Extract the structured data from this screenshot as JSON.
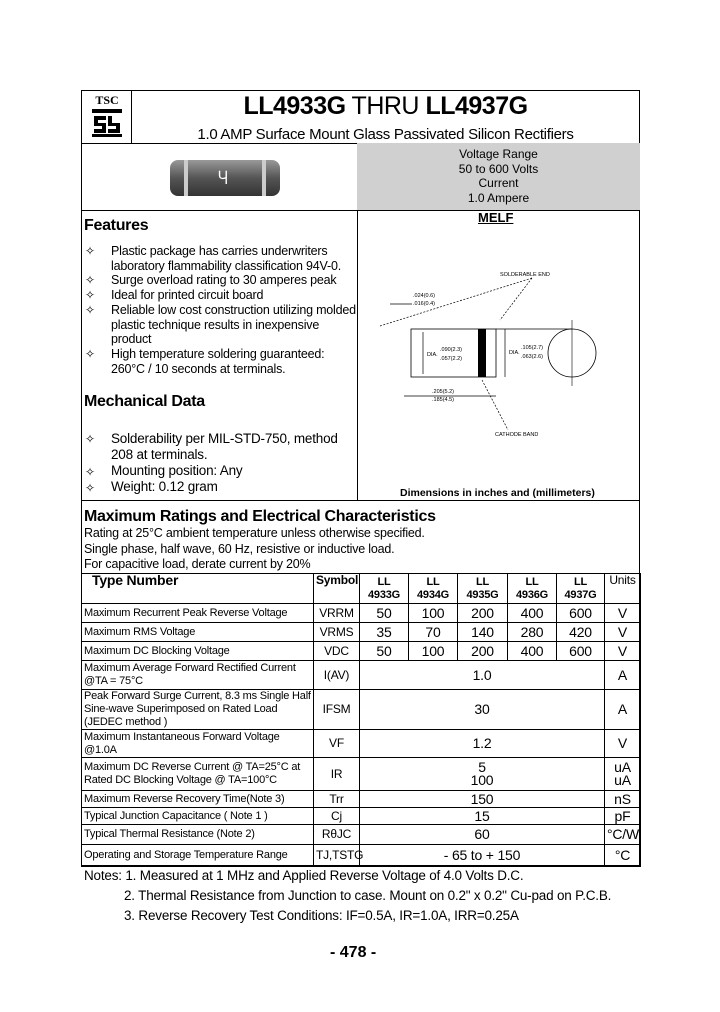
{
  "header": {
    "logo_text": "TSC",
    "part_from": "LL4933G",
    "thru": "THRU",
    "part_to": "LL4937G",
    "subtitle": "1.0 AMP Surface Mount Glass Passivated Silicon Rectifiers"
  },
  "summary": {
    "line1": "Voltage Range",
    "line2": "50 to 600 Volts",
    "line3": "Current",
    "line4": "1.0 Ampere"
  },
  "package": {
    "name": "MELF",
    "solderable_end": "SOLDERABLE END",
    "cathode_band": "CATHODE BAND",
    "dim1a": ".024(0.6)",
    "dim1b": ".016(0.4)",
    "dim2a": ".090(2.3)",
    "dim2b": ".057(2.2)",
    "dim3a": ".105(2.7)",
    "dim3b": ".063(2.6)",
    "dim4a": ".205(5.2)",
    "dim4b": ".185(4.5)",
    "dia": "DIA.",
    "caption": "Dimensions in inches and (millimeters)"
  },
  "features": {
    "title": "Features",
    "items": [
      "Plastic package has carries underwriters laboratory flammability classification 94V-0.",
      "Surge overload rating to 30 amperes peak",
      "Ideal for printed circuit board",
      "Reliable low cost construction utilizing molded plastic technique results in inexpensive product",
      "High temperature soldering guaranteed: 260°C / 10 seconds at terminals."
    ]
  },
  "mechanical": {
    "title": "Mechanical Data",
    "items": [
      "Solderability per MIL-STD-750, method 208 at terminals.",
      "Mounting position: Any",
      "Weight: 0.12 gram"
    ]
  },
  "ratings": {
    "title": "Maximum Ratings and Electrical Characteristics",
    "l1": "Rating at 25°C ambient temperature unless otherwise specified.",
    "l2": "Single phase, half wave, 60 Hz, resistive or inductive load.",
    "l3": "For capacitive load, derate current by 20%"
  },
  "table": {
    "h_type": "Type Number",
    "h_symbol": "Symbol",
    "h_units": "Units",
    "parts": [
      "LL 4933G",
      "LL 4934G",
      "LL 4935G",
      "LL 4936G",
      "LL 4937G"
    ],
    "rows": [
      {
        "desc": "Maximum Recurrent Peak Reverse Voltage",
        "sym": "VRRM",
        "vals": [
          "50",
          "100",
          "200",
          "400",
          "600"
        ],
        "unit": "V"
      },
      {
        "desc": "Maximum RMS Voltage",
        "sym": "VRMS",
        "vals": [
          "35",
          "70",
          "140",
          "280",
          "420"
        ],
        "unit": "V"
      },
      {
        "desc": "Maximum DC Blocking Voltage",
        "sym": "VDC",
        "vals": [
          "50",
          "100",
          "200",
          "400",
          "600"
        ],
        "unit": "V"
      },
      {
        "desc": "Maximum Average Forward Rectified Current @TA = 75°C",
        "sym": "I(AV)",
        "val": "1.0",
        "unit": "A"
      },
      {
        "desc": "Peak Forward Surge Current, 8.3 ms Single Half Sine-wave Superimposed on Rated Load (JEDEC method )",
        "sym": "IFSM",
        "val": "30",
        "unit": "A"
      },
      {
        "desc": "Maximum Instantaneous Forward Voltage @1.0A",
        "sym": "VF",
        "val": "1.2",
        "unit": "V"
      },
      {
        "desc": "Maximum DC Reverse Current @ TA=25°C at Rated DC Blocking Voltage @ TA=100°C",
        "sym": "IR",
        "val": "5",
        "val2": "100",
        "unit": "uA",
        "unit2": "uA"
      },
      {
        "desc": "Maximum Reverse Recovery Time(Note 3)",
        "sym": "Trr",
        "val": "150",
        "unit": "nS"
      },
      {
        "desc": "Typical Junction Capacitance ( Note 1 )",
        "sym": "Cj",
        "val": "15",
        "unit": "pF"
      },
      {
        "desc": "Typical Thermal Resistance (Note 2)",
        "sym": "RθJC",
        "val": "60",
        "unit": "°C/W"
      },
      {
        "desc": "Operating and Storage Temperature Range",
        "sym": "TJ,TSTG",
        "val": "- 65 to + 150",
        "unit": "°C"
      }
    ]
  },
  "notes": [
    "Notes: 1. Measured at 1 MHz and Applied Reverse Voltage of 4.0 Volts D.C.",
    "2. Thermal Resistance from Junction to case. Mount on 0.2\" x 0.2\" Cu-pad on P.C.B.",
    "3. Reverse Recovery Test Conditions: IF=0.5A, IR=1.0A, IRR=0.25A"
  ],
  "page_number": "- 478 -"
}
